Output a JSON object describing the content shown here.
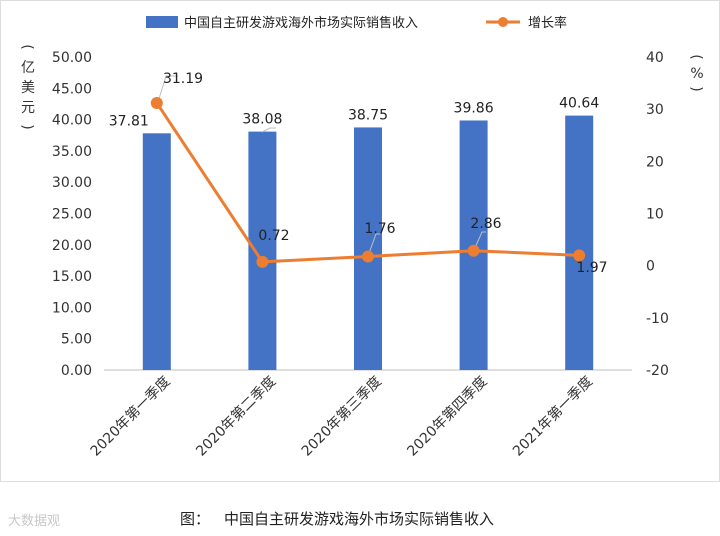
{
  "chart_data": {
    "type": "bar+line",
    "categories": [
      "2020年第一季度",
      "2020年第二季度",
      "2020年第三季度",
      "2020年第四季度",
      "2021年第一季度"
    ],
    "series": [
      {
        "name": "中国自主研发游戏海外市场实际销售收入",
        "type": "bar",
        "axis": "left",
        "color": "#4472c4",
        "values": [
          37.81,
          38.08,
          38.75,
          39.86,
          40.64
        ],
        "labels": [
          "37.81",
          "38.08",
          "38.75",
          "39.86",
          "40.64"
        ]
      },
      {
        "name": "增长率",
        "type": "line",
        "axis": "right",
        "color": "#ed7d31",
        "values": [
          31.19,
          0.72,
          1.76,
          2.86,
          1.97
        ],
        "labels": [
          "31.19",
          "0.72",
          "1.76",
          "2.86",
          "1.97"
        ]
      }
    ],
    "y_left": {
      "label_chars": [
        "(",
        "亿",
        "美",
        "元",
        ")"
      ],
      "ylim": [
        0,
        50
      ],
      "ticks": [
        "0.00",
        "5.00",
        "10.00",
        "15.00",
        "20.00",
        "25.00",
        "30.00",
        "35.00",
        "40.00",
        "45.00",
        "50.00"
      ]
    },
    "y_right": {
      "label_chars": [
        "(",
        "%",
        ")"
      ],
      "ylim": [
        -20,
        40
      ],
      "ticks": [
        "-20",
        "-10",
        "0",
        "10",
        "20",
        "30",
        "40"
      ]
    },
    "legend": "top-center",
    "grid": false
  },
  "caption": {
    "prefix": "图：",
    "text": "中国自主研发游戏海外市场实际销售收入"
  },
  "watermark": "大数据观"
}
